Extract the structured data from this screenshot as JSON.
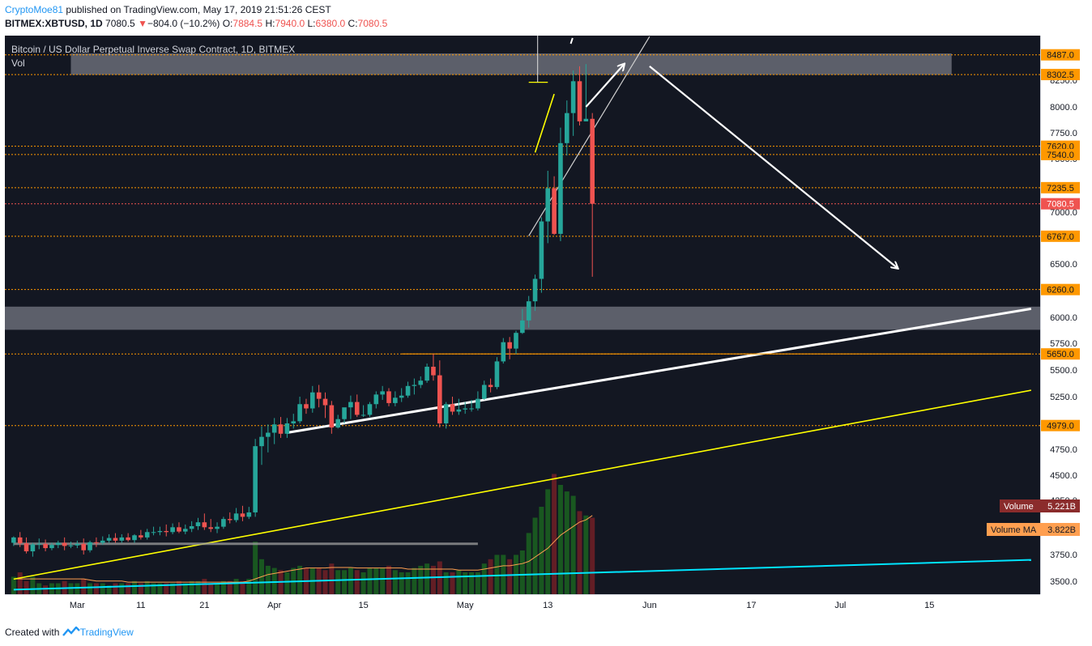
{
  "header": {
    "author": "CryptoMoe81",
    "published": " published on TradingView.com, May 17, 2019 21:51:26 CEST",
    "symbol": "BITMEX:XBTUSD, 1D",
    "last": "7080.5",
    "change": "−804.0 (−10.2%)",
    "o_label": "O:",
    "o": "7884.5",
    "h_label": "H:",
    "h": "7940.0",
    "l_label": "L:",
    "l": "6380.0",
    "c_label": "C:",
    "c": "7080.5"
  },
  "footer": {
    "created": "Created with",
    "brand": "TradingView"
  },
  "colors": {
    "background": "#131722",
    "up": "#26a69a",
    "down": "#ef5350",
    "level_line": "#ff9800",
    "level_label": "#ff9800",
    "current_price": "#ef5350",
    "trend_yellow": "#ffff00",
    "trend_cyan": "#00e5ff",
    "trend_white": "#ffffff",
    "zone": "#787b86",
    "vol_label": "#8b2c2c",
    "volma_label": "#ff9f50"
  },
  "chart_data": {
    "type": "candlestick",
    "title": "Bitcoin / US Dollar Perpetual Inverse Swap Contract, 1D, BITMEX",
    "subtitle": "Vol",
    "x_tick_labels": [
      "Mar",
      "11",
      "21",
      "Apr",
      "15",
      "May",
      "13",
      "Jun",
      "17",
      "Jul",
      "15"
    ],
    "x_tick_days": [
      11,
      21,
      31,
      42,
      56,
      72,
      85,
      101,
      117,
      131,
      145
    ],
    "y_tick_labels": [
      "3500.0",
      "3750.0",
      "4000.0",
      "4250.0",
      "4500.0",
      "4750.0",
      "5000.0",
      "5250.0",
      "5500.0",
      "5750.0",
      "6000.0",
      "6500.0",
      "7000.0",
      "7250.0",
      "7500.0",
      "7750.0",
      "8000.0",
      "8250.0"
    ],
    "y_ticks": [
      3500,
      3750,
      4000,
      4250,
      4500,
      4750,
      5000,
      5250,
      5500,
      5750,
      6000,
      6500,
      7000,
      7250,
      7500,
      7750,
      8000,
      8250
    ],
    "ylim": [
      3400,
      8600
    ],
    "xlim_days": [
      0,
      161
    ],
    "price_levels": [
      {
        "value": 8487,
        "label": "8487.0"
      },
      {
        "value": 8302.5,
        "label": "8302.5"
      },
      {
        "value": 7620,
        "label": "7620.0"
      },
      {
        "value": 7540,
        "label": "7540.0"
      },
      {
        "value": 7235.5,
        "label": "7235.5"
      },
      {
        "value": 6767,
        "label": "6767.0"
      },
      {
        "value": 6260,
        "label": "6260.0"
      },
      {
        "value": 5650,
        "label": "5650.0"
      },
      {
        "value": 4979,
        "label": "4979.0"
      }
    ],
    "current_price": {
      "value": 7080.5,
      "label": "7080.5"
    },
    "zones": [
      {
        "from": 5880,
        "to": 6100
      },
      {
        "from": 8300,
        "to": 8500
      }
    ],
    "indicator_labels": [
      {
        "name": "Volume",
        "value": "5.221B"
      },
      {
        "name": "Volume MA",
        "value": "3.822B"
      }
    ],
    "candles": {
      "start_day": 1,
      "open": [
        3860,
        3910,
        3855,
        3780,
        3845,
        3850,
        3810,
        3840,
        3860,
        3830,
        3835,
        3850,
        3790,
        3865,
        3860,
        3880,
        3905,
        3880,
        3910,
        3885,
        3930,
        3910,
        3960,
        3960,
        3970,
        3960,
        4005,
        3965,
        3990,
        4015,
        4050,
        4005,
        3990,
        4010,
        4080,
        4070,
        4130,
        4100,
        4140,
        4780,
        4870,
        4910,
        4990,
        4900,
        5000,
        5020,
        5180,
        5140,
        5290,
        5230,
        5170,
        4960,
        5040,
        5150,
        5200,
        5080,
        5080,
        5180,
        5270,
        5300,
        5190,
        5240,
        5260,
        5350,
        5360,
        5400,
        5530,
        5450,
        5000,
        5180,
        5110,
        5130,
        5140,
        5140,
        5230,
        5360,
        5340,
        5580,
        5760,
        5700,
        5850,
        5970,
        6150,
        6360,
        6910,
        7230,
        6790,
        7650,
        7940,
        8240,
        7860,
        7884.5
      ],
      "high": [
        3920,
        3960,
        3910,
        3860,
        3900,
        3890,
        3860,
        3880,
        3910,
        3870,
        3880,
        3900,
        3880,
        3910,
        3920,
        3940,
        3950,
        3940,
        3950,
        3940,
        3980,
        3990,
        4010,
        4010,
        4030,
        4040,
        4050,
        4030,
        4060,
        4090,
        4130,
        4080,
        4050,
        4100,
        4140,
        4180,
        4200,
        4190,
        4850,
        4970,
        4990,
        5050,
        5060,
        5050,
        5090,
        5250,
        5230,
        5350,
        5360,
        5290,
        5210,
        5080,
        5140,
        5260,
        5270,
        5170,
        5200,
        5300,
        5350,
        5330,
        5300,
        5330,
        5390,
        5420,
        5440,
        5560,
        5650,
        5590,
        5200,
        5250,
        5230,
        5200,
        5220,
        5300,
        5400,
        5420,
        5620,
        5800,
        5810,
        5870,
        6080,
        6200,
        6400,
        6950,
        7390,
        7340,
        7800,
        8060,
        8340,
        8380,
        8400,
        7940
      ],
      "low": [
        3830,
        3820,
        3760,
        3730,
        3800,
        3780,
        3790,
        3810,
        3790,
        3810,
        3810,
        3750,
        3770,
        3820,
        3840,
        3860,
        3860,
        3860,
        3870,
        3860,
        3890,
        3890,
        3930,
        3930,
        3920,
        3940,
        3950,
        3940,
        3960,
        3980,
        3980,
        3960,
        3950,
        3990,
        4040,
        4050,
        4060,
        4080,
        4100,
        4600,
        4720,
        4800,
        4860,
        4860,
        4950,
        5000,
        5090,
        5100,
        5150,
        5050,
        4900,
        4950,
        5000,
        5040,
        5060,
        5060,
        5060,
        5140,
        5220,
        5160,
        5160,
        5200,
        5240,
        5270,
        5330,
        5380,
        5400,
        4960,
        4950,
        5080,
        5080,
        5090,
        5110,
        5120,
        5220,
        5290,
        5320,
        5560,
        5600,
        5650,
        5840,
        5900,
        6060,
        6230,
        6700,
        6780,
        6720,
        7530,
        7720,
        7820,
        7860,
        6380
      ],
      "close": [
        3910,
        3855,
        3780,
        3845,
        3850,
        3810,
        3840,
        3860,
        3830,
        3835,
        3850,
        3790,
        3865,
        3860,
        3880,
        3905,
        3880,
        3910,
        3885,
        3930,
        3910,
        3960,
        3960,
        3970,
        3960,
        4005,
        3965,
        3990,
        4015,
        4050,
        4005,
        3990,
        4010,
        4080,
        4070,
        4130,
        4100,
        4140,
        4780,
        4870,
        4910,
        4990,
        4900,
        5000,
        5020,
        5180,
        5140,
        5290,
        5230,
        5170,
        4960,
        5040,
        5150,
        5200,
        5080,
        5080,
        5180,
        5270,
        5300,
        5190,
        5240,
        5260,
        5350,
        5360,
        5400,
        5530,
        5450,
        5000,
        5180,
        5110,
        5130,
        5140,
        5140,
        5230,
        5360,
        5340,
        5580,
        5760,
        5700,
        5850,
        5970,
        6150,
        6360,
        6910,
        7230,
        6790,
        7650,
        7940,
        8240,
        7860,
        7884.5,
        7080.5
      ]
    },
    "volume_relative": [
      0.8,
      1.0,
      0.6,
      0.8,
      0.5,
      0.4,
      0.5,
      0.5,
      0.6,
      0.5,
      0.5,
      0.7,
      0.5,
      0.5,
      0.5,
      0.4,
      0.5,
      0.5,
      0.5,
      0.6,
      0.5,
      0.6,
      0.5,
      0.5,
      0.5,
      0.5,
      0.6,
      0.5,
      0.6,
      0.6,
      0.7,
      0.5,
      0.5,
      0.6,
      0.6,
      0.7,
      0.6,
      0.7,
      2.4,
      1.6,
      1.3,
      1.2,
      1.1,
      1.0,
      1.2,
      1.3,
      1.2,
      1.2,
      1.2,
      1.1,
      1.4,
      1.1,
      1.1,
      1.2,
      1.1,
      1.0,
      1.2,
      1.2,
      1.2,
      1.3,
      1.1,
      1.0,
      1.0,
      1.2,
      1.3,
      1.4,
      1.3,
      1.5,
      1.0,
      1.0,
      1.1,
      1.0,
      1.0,
      1.0,
      1.4,
      1.6,
      1.8,
      1.8,
      1.6,
      1.8,
      2.0,
      2.8,
      3.5,
      4.0,
      4.8,
      5.5,
      5.0,
      4.7,
      4.5,
      3.8,
      3.6,
      3.5
    ],
    "volume_ma_relative": [
      0.7,
      0.7,
      0.7,
      0.7,
      0.7,
      0.7,
      0.7,
      0.7,
      0.7,
      0.7,
      0.7,
      0.7,
      0.65,
      0.6,
      0.6,
      0.6,
      0.6,
      0.6,
      0.55,
      0.55,
      0.55,
      0.55,
      0.55,
      0.55,
      0.55,
      0.55,
      0.55,
      0.55,
      0.55,
      0.55,
      0.55,
      0.55,
      0.55,
      0.55,
      0.55,
      0.55,
      0.55,
      0.6,
      0.7,
      0.8,
      0.9,
      0.95,
      1.0,
      1.05,
      1.1,
      1.15,
      1.2,
      1.2,
      1.2,
      1.2,
      1.22,
      1.22,
      1.22,
      1.22,
      1.2,
      1.2,
      1.2,
      1.2,
      1.2,
      1.2,
      1.2,
      1.2,
      1.15,
      1.15,
      1.15,
      1.15,
      1.15,
      1.15,
      1.15,
      1.15,
      1.1,
      1.1,
      1.1,
      1.1,
      1.15,
      1.2,
      1.25,
      1.3,
      1.3,
      1.35,
      1.4,
      1.5,
      1.7,
      1.9,
      2.1,
      2.4,
      2.7,
      2.9,
      3.1,
      3.3,
      3.4,
      3.6
    ],
    "trendlines": [
      {
        "color": "yellow",
        "from": {
          "day": 1,
          "price": 3520
        },
        "to": {
          "day": 161,
          "price": 5310
        }
      },
      {
        "color": "cyan",
        "from": {
          "day": 1,
          "price": 3420
        },
        "to": {
          "day": 161,
          "price": 3700
        }
      },
      {
        "color": "white",
        "from": {
          "day": 44,
          "price": 4910
        },
        "to": {
          "day": 161,
          "price": 6080
        }
      },
      {
        "color": "yellow",
        "from": {
          "day": 83,
          "price": 7560
        },
        "to": {
          "day": 86,
          "price": 8120
        }
      },
      {
        "color": "white-thin",
        "from": {
          "day": 82,
          "price": 6770
        },
        "to": {
          "day": 101,
          "price": 8660
        }
      }
    ],
    "arrows": [
      {
        "from": {
          "day": 91,
          "price": 8000
        },
        "to": {
          "day": 97,
          "price": 8400
        }
      },
      {
        "from": {
          "day": 101,
          "price": 8380
        },
        "to": {
          "day": 140,
          "price": 6460
        }
      }
    ],
    "horizontal_rays": [
      {
        "from_day": 1,
        "to_day": 74,
        "price": 3850,
        "color": "grey"
      },
      {
        "from_day": 82,
        "to_day": 85,
        "price": 8230,
        "color": "yellow"
      },
      {
        "from_day": 62,
        "to_day": 161,
        "price": 5650,
        "color": "orange-solid"
      }
    ]
  }
}
